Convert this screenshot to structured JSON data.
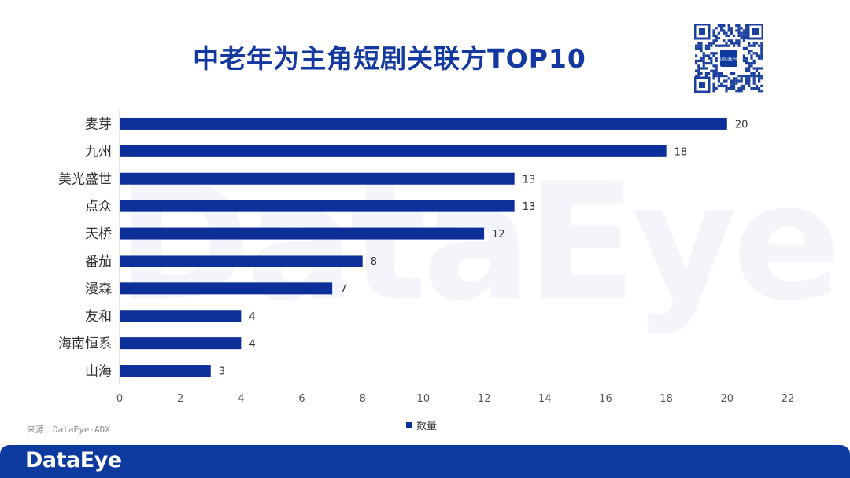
{
  "title": "中老年为主角短剧关联方TOP10",
  "source": "来源：DataEye-ADX",
  "footer": {
    "logo": "DataEye"
  },
  "watermark": "DataEye",
  "qr": {
    "center_label": "DataEye"
  },
  "colors": {
    "bar": "#0d2f9a",
    "title": "#1338a0",
    "footer": "#0d3a9e"
  },
  "chart_data": {
    "type": "bar",
    "orientation": "horizontal",
    "categories": [
      "麦芽",
      "九州",
      "美光盛世",
      "点众",
      "天桥",
      "番茄",
      "漫森",
      "友和",
      "海南恒系",
      "山海"
    ],
    "series": [
      {
        "name": "数量",
        "values": [
          20,
          18,
          13,
          13,
          12,
          8,
          7,
          4,
          4,
          3
        ]
      }
    ],
    "xlim": [
      0,
      22
    ],
    "xticks": [
      0,
      2,
      4,
      6,
      8,
      10,
      12,
      14,
      16,
      18,
      20,
      22
    ],
    "grid": false,
    "legend_position": "bottom",
    "data_labels": true
  }
}
